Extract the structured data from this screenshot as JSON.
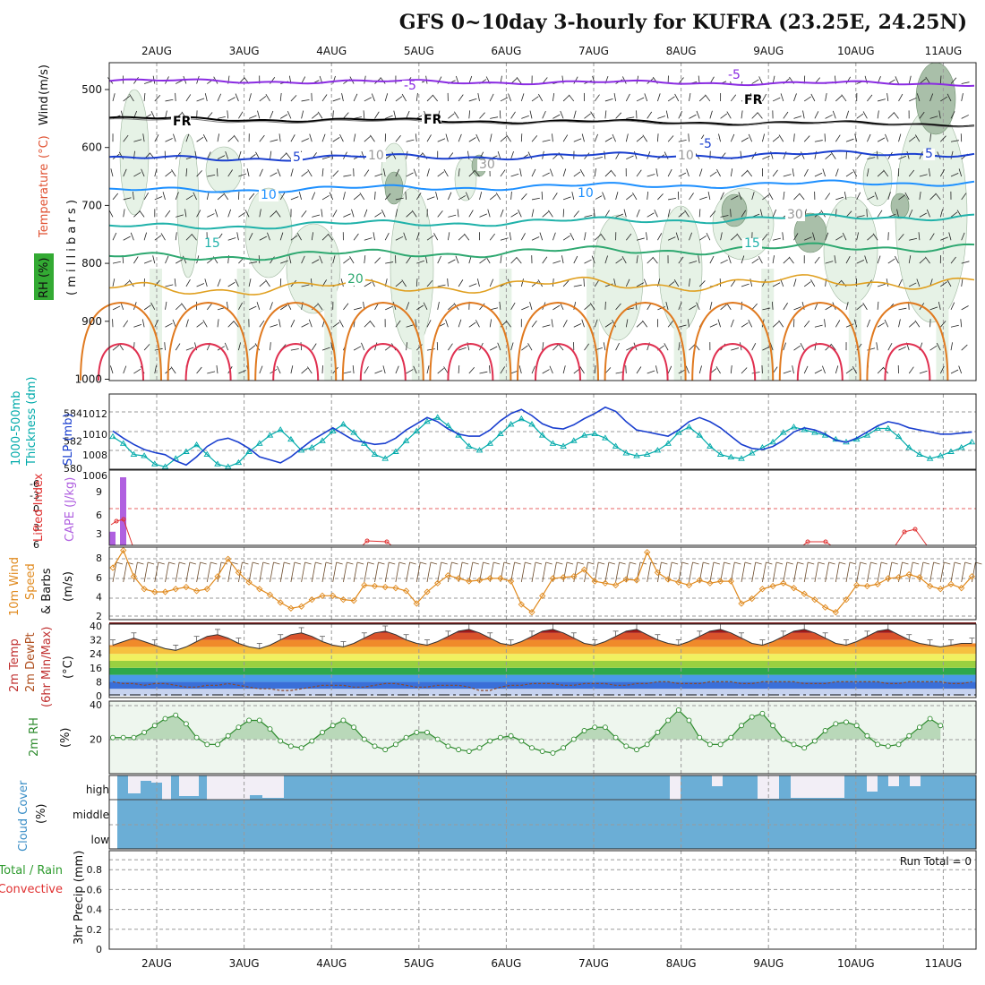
{
  "title": "GFS 0~10day 3-hourly for KUFRA (23.25E, 24.25N)",
  "colors": {
    "wind": "#111111",
    "temperature": "#e03030",
    "rh": "#2e8b2e",
    "rh_bg": "#33aa33",
    "cape": "#b060e0",
    "lifted": "#e03030",
    "thickness": "#00aaaa",
    "slp": "#1a3fcf",
    "wind10": "#e08a1e",
    "temp2m": "#c03030",
    "dew2m": "#b05020",
    "minmax": "#c03030",
    "rh2m": "#2e8b2e",
    "cloud": "#6baed6",
    "precip_total": "#2e9b2e",
    "precip_conv": "#e03030",
    "t_minus5": "#8a2be2",
    "t_fr": "#000000",
    "t_5": "#1a3fcf",
    "t_10": "#1e90ff",
    "t_15": "#20b2aa",
    "t_20": "#2ea870"
  },
  "day_labels": [
    "2AUG",
    "3AUG",
    "4AUG",
    "5AUG",
    "6AUG",
    "7AUG",
    "8AUG",
    "9AUG",
    "10AUG",
    "11AUG"
  ],
  "panels": {
    "upper": {
      "ylabel_parts": [
        "Wind (m/s)",
        "Temperature (°C)",
        "RH (%)",
        "m i l l i b a r s"
      ],
      "ylabel_wind": "Wind",
      "ylabel_wind_units": "(m/s)",
      "ylabel_temp": "Temperature",
      "ylabel_temp_units": "(°C)",
      "ylabel_rh": "RH (%)",
      "ylabel_mb": "( m i l l i b a r s )",
      "pressure_ticks": [
        "500",
        "600",
        "700",
        "800",
        "900",
        "1000"
      ],
      "contour_labels": [
        "-5",
        "-5",
        "FR",
        "FR",
        "FR",
        "5",
        "-5",
        "10",
        "10",
        "10",
        "30",
        "30",
        "10",
        "15",
        "15",
        "20",
        "5"
      ]
    },
    "thickness": {
      "ylabel_left": "1000-500mb",
      "ylabel_left2": "Thickness (dm)",
      "ylabel_right": "SLP (mb)",
      "left_ticks": [
        "584",
        "582",
        "580"
      ],
      "right_ticks": [
        "1012",
        "1010",
        "1008",
        "1006"
      ]
    },
    "cape": {
      "ylabel_li": "Lifted Index",
      "ylabel_cape": "CAPE (J/kg)",
      "li_ticks": [
        "-6",
        "-3",
        "0",
        "3",
        "6"
      ],
      "cape_ticks": [
        "9",
        "6",
        "3"
      ]
    },
    "wind10": {
      "ylabel1": "10m Wind",
      "ylabel2": "Speed",
      "ylabel3": "& Barbs",
      "units": "(m/s)",
      "ticks": [
        "8",
        "6",
        "4",
        "2"
      ]
    },
    "temp2m": {
      "ylabel1": "2m Temp",
      "ylabel2": "2m DewPt",
      "ylabel3": "(6hr Min/Max)",
      "units": "(°C)",
      "ticks": [
        "40",
        "32",
        "24",
        "16",
        "8",
        "0"
      ]
    },
    "rh2m": {
      "ylabel": "2m RH",
      "units": "(%)",
      "ticks": [
        "40",
        "20"
      ]
    },
    "cloud": {
      "ylabel": "Cloud Cover",
      "units": "(%)",
      "levels": [
        "high",
        "middle",
        "low"
      ]
    },
    "precip": {
      "ylabel_total": "Total / Rain",
      "ylabel_conv": "Convective",
      "ylabel_precip": "3hr Precip (mm)",
      "ticks": [
        "0.8",
        "0.6",
        "0.4",
        "0.2",
        "0"
      ],
      "run_total": "Run Total = 0"
    }
  },
  "chart_data": [
    {
      "type": "line",
      "title": "1000-500mb Thickness (dm) / SLP (mb)",
      "x_unit": "3-hourly steps from 1AUG 12Z",
      "series": [
        {
          "name": "1000-500mb Thickness (dm)",
          "axis": "left",
          "values": [
            582.3,
            581.8,
            581.0,
            580.9,
            580.3,
            580.1,
            580.7,
            581.2,
            581.7,
            581.0,
            580.3,
            580.1,
            580.4,
            581.2,
            581.8,
            582.4,
            582.8,
            582.1,
            581.3,
            581.5,
            582.0,
            582.7,
            583.2,
            582.6,
            581.8,
            581.0,
            580.7,
            581.2,
            582.0,
            582.7,
            583.4,
            583.7,
            583.1,
            582.4,
            581.6,
            581.3,
            581.8,
            582.5,
            583.2,
            583.6,
            583.2,
            582.4,
            581.8,
            581.6,
            582.0,
            582.4,
            582.5,
            582.2,
            581.6,
            581.1,
            580.9,
            581.0,
            581.3,
            581.8,
            582.6,
            583.0,
            582.4,
            581.6,
            581.0,
            580.8,
            580.7,
            581.1,
            581.5,
            581.9,
            582.6,
            583.0,
            582.8,
            582.6,
            582.4,
            582.1,
            581.9,
            582.1,
            582.4,
            582.9,
            582.9,
            582.3,
            581.5,
            581.0,
            580.7,
            580.9,
            581.2,
            581.5,
            581.9
          ]
        },
        {
          "name": "SLP (mb)",
          "axis": "right",
          "values": [
            1010.3,
            1009.6,
            1009.0,
            1008.5,
            1008.2,
            1008.0,
            1007.4,
            1007.0,
            1007.8,
            1008.8,
            1009.4,
            1009.6,
            1009.2,
            1008.6,
            1007.8,
            1007.5,
            1007.2,
            1007.8,
            1008.6,
            1009.4,
            1010.0,
            1010.6,
            1010.0,
            1009.4,
            1009.2,
            1009.0,
            1009.1,
            1009.6,
            1010.4,
            1011.0,
            1011.6,
            1011.2,
            1010.5,
            1010.0,
            1009.8,
            1009.8,
            1010.4,
            1011.3,
            1012.0,
            1012.4,
            1011.8,
            1011.0,
            1010.6,
            1010.5,
            1010.9,
            1011.5,
            1012.0,
            1012.6,
            1012.2,
            1011.2,
            1010.4,
            1010.2,
            1010.0,
            1009.8,
            1010.4,
            1011.2,
            1011.6,
            1011.2,
            1010.6,
            1009.8,
            1009.0,
            1008.6,
            1008.5,
            1008.8,
            1009.4,
            1010.2,
            1010.6,
            1010.4,
            1010.0,
            1009.4,
            1009.2,
            1009.6,
            1010.2,
            1010.8,
            1011.2,
            1011.0,
            1010.6,
            1010.4,
            1010.2,
            1010.0,
            1010.0,
            1010.1,
            1010.2
          ]
        }
      ]
    },
    {
      "type": "bar",
      "title": "Lifted Index / CAPE (J/kg)",
      "series": [
        {
          "name": "CAPE (J/kg)",
          "values": [
            2.0,
            10.0,
            0,
            0
          ]
        },
        {
          "name": "Lifted Index",
          "values": [
            1.5,
            1.2,
            4.8,
            4.8
          ]
        }
      ]
    },
    {
      "type": "line",
      "title": "10m Wind Speed (m/s)",
      "series": [
        {
          "name": "10m Wind Speed",
          "values": [
            7.0,
            8.8,
            6.1,
            4.8,
            4.5,
            4.5,
            4.8,
            5.0,
            4.6,
            4.8,
            6.1,
            7.9,
            6.5,
            5.5,
            4.8,
            4.2,
            3.4,
            2.8,
            3.0,
            3.7,
            4.1,
            4.1,
            3.7,
            3.6,
            5.2,
            5.1,
            5.0,
            4.9,
            4.6,
            3.3,
            4.5,
            5.4,
            6.2,
            5.9,
            5.6,
            5.7,
            5.9,
            5.9,
            5.6,
            3.2,
            2.4,
            4.1,
            5.9,
            6.0,
            6.1,
            6.8,
            5.6,
            5.4,
            5.2,
            5.8,
            5.7,
            8.6,
            6.5,
            5.8,
            5.5,
            5.2,
            5.7,
            5.4,
            5.6,
            5.6,
            3.3,
            3.8,
            4.8,
            5.1,
            5.4,
            4.9,
            4.3,
            3.7,
            2.9,
            2.4,
            3.7,
            5.2,
            5.1,
            5.3,
            5.9,
            6.0,
            6.3,
            6.0,
            5.1,
            4.8,
            5.3,
            4.9,
            6.1
          ]
        }
      ]
    },
    {
      "type": "area",
      "title": "2m Temp / 2m DewPt (°C)",
      "series": [
        {
          "name": "2m Temp",
          "values": [
            29,
            31,
            33,
            31,
            29,
            27,
            26,
            28,
            31,
            34,
            35,
            33,
            30,
            28,
            27,
            29,
            32,
            35,
            36,
            34,
            31,
            29,
            28,
            30,
            33,
            36,
            37,
            35,
            32,
            30,
            29,
            31,
            34,
            37,
            38,
            36,
            33,
            30,
            29,
            31,
            34,
            37,
            38,
            36,
            33,
            30,
            29,
            31,
            34,
            37,
            38,
            35,
            32,
            30,
            29,
            31,
            34,
            37,
            38,
            36,
            33,
            30,
            29,
            31,
            34,
            37,
            38,
            36,
            33,
            30,
            29,
            31,
            34,
            37,
            38,
            35,
            32,
            30,
            29,
            28,
            29,
            30,
            30
          ]
        },
        {
          "name": "2m DewPt",
          "values": [
            8,
            7,
            7,
            6,
            7,
            7,
            6,
            5,
            5,
            6,
            6,
            7,
            6,
            5,
            4,
            4,
            3,
            3,
            4,
            5,
            6,
            6,
            6,
            5,
            5,
            6,
            7,
            7,
            6,
            5,
            5,
            6,
            6,
            6,
            5,
            3,
            3,
            5,
            6,
            6,
            7,
            7,
            7,
            6,
            6,
            7,
            7,
            7,
            6,
            6,
            7,
            7,
            8,
            8,
            7,
            7,
            7,
            8,
            8,
            8,
            7,
            7,
            8,
            8,
            8,
            8,
            7,
            7,
            7,
            8,
            8,
            8,
            8,
            8,
            7,
            7,
            8,
            8,
            8,
            8,
            7,
            7,
            8
          ]
        }
      ]
    },
    {
      "type": "area",
      "title": "2m RH (%)",
      "series": [
        {
          "name": "2m RH",
          "values": [
            21,
            21,
            21,
            24,
            28,
            32,
            34,
            29,
            21,
            17,
            17,
            22,
            27,
            31,
            31,
            26,
            19,
            16,
            15,
            19,
            24,
            28,
            31,
            27,
            20,
            16,
            14,
            17,
            21,
            24,
            24,
            20,
            16,
            14,
            13,
            15,
            19,
            21,
            22,
            19,
            15,
            13,
            12,
            15,
            20,
            25,
            27,
            27,
            21,
            16,
            14,
            17,
            24,
            31,
            37,
            31,
            21,
            17,
            17,
            21,
            28,
            33,
            35,
            28,
            20,
            17,
            15,
            19,
            25,
            29,
            30,
            28,
            22,
            17,
            16,
            17,
            22,
            27,
            32,
            28
          ]
        }
      ]
    },
    {
      "type": "bar",
      "title": "Cloud Cover (%)",
      "series": [
        {
          "name": "high",
          "values": [
            0,
            5,
            15,
            10,
            40,
            30,
            2,
            2,
            0,
            0,
            100,
            100,
            100,
            100,
            3,
            1,
            1,
            0,
            0,
            0,
            0,
            0,
            0,
            0,
            0,
            0,
            0,
            0,
            0,
            0,
            0,
            0,
            0,
            0,
            0,
            0,
            0,
            0,
            0,
            0,
            0,
            0,
            0,
            0,
            0,
            0,
            0,
            0,
            0,
            0,
            0,
            0,
            0,
            0,
            0,
            0,
            50,
            0,
            0,
            0,
            10,
            0,
            0,
            0,
            2,
            2,
            1,
            1,
            1,
            1,
            1,
            1,
            0,
            0,
            0,
            0,
            5,
            0,
            8,
            0,
            8,
            0,
            0
          ]
        }
      ]
    },
    {
      "type": "bar",
      "title": "3hr Precip (mm)",
      "series": [
        {
          "name": "Total / Rain",
          "values": [
            0,
            0,
            0,
            0,
            0,
            0,
            0,
            0,
            0,
            0
          ]
        },
        {
          "name": "Convective",
          "values": [
            0,
            0,
            0,
            0,
            0,
            0,
            0,
            0,
            0,
            0
          ]
        }
      ],
      "ylim": [
        0,
        0.9
      ]
    }
  ]
}
